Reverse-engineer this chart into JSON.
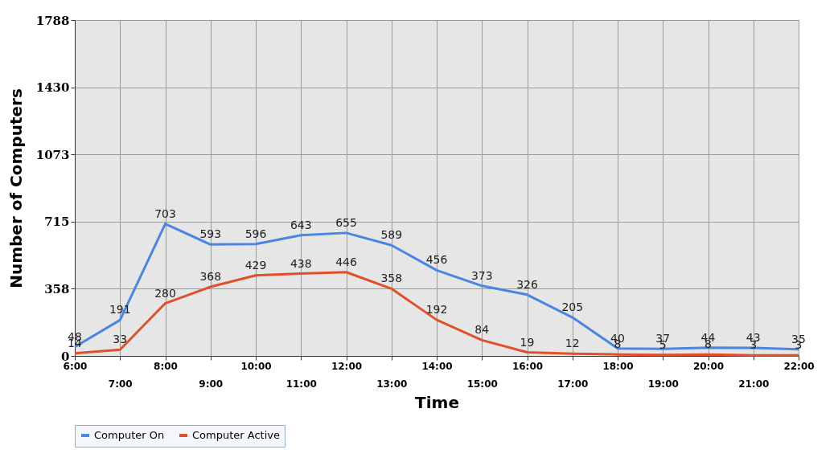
{
  "chart_data": {
    "type": "line",
    "xlabel": "Time",
    "ylabel": "Number of Computers",
    "categories": [
      "6:00",
      "7:00",
      "8:00",
      "9:00",
      "10:00",
      "11:00",
      "12:00",
      "13:00",
      "14:00",
      "15:00",
      "16:00",
      "17:00",
      "18:00",
      "19:00",
      "20:00",
      "21:00",
      "22:00"
    ],
    "series": [
      {
        "name": "Computer On",
        "color": "#4a86e0",
        "values": [
          48,
          191,
          703,
          593,
          596,
          643,
          655,
          589,
          456,
          373,
          326,
          205,
          40,
          37,
          44,
          43,
          35
        ]
      },
      {
        "name": "Computer Active",
        "color": "#e0502a",
        "values": [
          14,
          33,
          280,
          368,
          429,
          438,
          446,
          358,
          192,
          84,
          19,
          12,
          8,
          5,
          8,
          3,
          3
        ]
      }
    ],
    "ylim": [
      0,
      1788
    ],
    "yticks": [
      0,
      358,
      715,
      1073,
      1430,
      1788
    ],
    "grid": true,
    "legend": "bottom",
    "data_labels": true,
    "marker": "none",
    "line_style": "solid"
  }
}
